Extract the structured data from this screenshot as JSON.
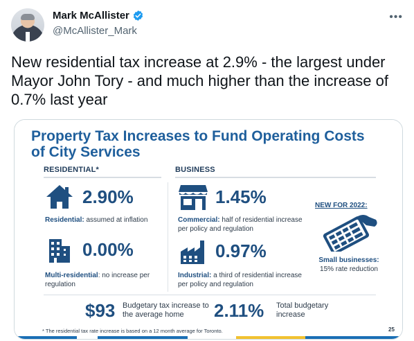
{
  "tweet": {
    "display_name": "Mark McAllister",
    "handle": "@McAllister_Mark",
    "text": "New residential tax increase at 2.9% - the largest under Mayor John Tory - and much higher than the increase of 0.7% last year"
  },
  "slide": {
    "title": "Property Tax Increases to Fund Operating Costs of City Services",
    "residential_header": "RESIDENTIAL*",
    "business_header": "BUSINESS",
    "residential": {
      "value": "2.90%",
      "label": "Residential:",
      "text": " assumed at inflation"
    },
    "multi_residential": {
      "value": "0.00%",
      "label": "Multi-residential",
      "text": ": no increase per regulation"
    },
    "commercial": {
      "value": "1.45%",
      "label": "Commercial:",
      "text": " half of residential increase per policy and regulation"
    },
    "industrial": {
      "value": "0.97%",
      "label": "Industrial:",
      "text": " a third of residential increase per policy and regulation"
    },
    "new_for": "NEW FOR 2022:",
    "small_business": {
      "label": "Small businesses:",
      "text": "15% rate reduction"
    },
    "budgetary_amount": "$93",
    "budgetary_text": "Budgetary tax increase to the average home",
    "total_value": "2.11%",
    "total_text": "Total budgetary increase",
    "footnote": "* The residential tax rate increase is based on a 12 month average for Toronto.",
    "page_number": "25"
  },
  "colors": {
    "title_blue": "#1f5f9c",
    "value_blue": "#1f4f80",
    "bar_blue": "#1a6fb5",
    "bar_yellow": "#f2c230",
    "verified": "#1d9bf0"
  },
  "icons": {
    "verified": "verified-badge-icon",
    "more": "more-icon",
    "house": "house-icon",
    "building": "apartment-building-icon",
    "storefront": "storefront-icon",
    "factory": "factory-icon",
    "calculator": "calculator-icon"
  }
}
